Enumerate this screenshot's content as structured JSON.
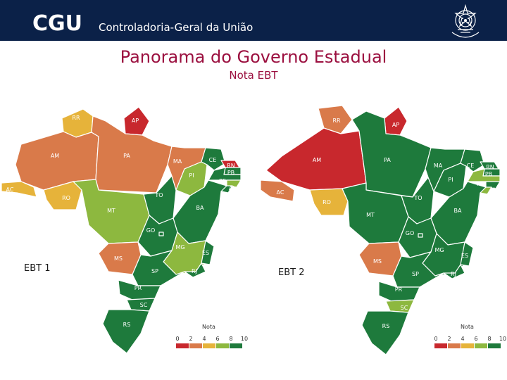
{
  "header": {
    "logo_text": "CGU",
    "org_name": "Controladoria-Geral da União"
  },
  "title": "Panorama do Governo Estadual",
  "subtitle": "Nota EBT",
  "palette": {
    "red": "#c8282d",
    "orange": "#d97a4a",
    "yellow": "#e6b33a",
    "lightgreen": "#8db83f",
    "green": "#1e7a3c",
    "header_bg": "#0b2148",
    "title_color": "#9b0f3f"
  },
  "maps": [
    {
      "label": "EBT 1",
      "legend_title": "Nota",
      "legend_ticks": [
        "0",
        "2",
        "4",
        "6",
        "8",
        "10"
      ],
      "states": {
        "RR": "yellow",
        "AP": "red",
        "AM": "orange",
        "PA": "orange",
        "AC": "yellow",
        "RO": "yellow",
        "MT": "lightgreen",
        "TO": "green",
        "MA": "orange",
        "PI": "lightgreen",
        "CE": "green",
        "RN": "red",
        "PB": "green",
        "PE": "green",
        "AL": "lightgreen",
        "SE": "green",
        "BA": "green",
        "GO": "green",
        "DF": "green",
        "MG": "lightgreen",
        "ES": "green",
        "RJ": "green",
        "MS": "orange",
        "SP": "green",
        "PR": "green",
        "SC": "green",
        "RS": "green"
      },
      "state_labels": [
        "RR",
        "AP",
        "AM",
        "PA",
        "AC",
        "RO",
        "MT",
        "TO",
        "MA",
        "PI",
        "CE",
        "RN",
        "PB",
        "PE",
        "AL",
        "SE",
        "BA",
        "GO",
        "MG",
        "ES",
        "RJ",
        "MS",
        "SP",
        "PR",
        "SC",
        "RS"
      ]
    },
    {
      "label": "EBT 2",
      "legend_title": "Nota",
      "legend_ticks": [
        "0",
        "2",
        "4",
        "6",
        "8",
        "10"
      ],
      "states": {
        "RR": "orange",
        "AP": "red",
        "AM": "red",
        "PA": "green",
        "AC": "orange",
        "RO": "yellow",
        "MT": "green",
        "TO": "green",
        "MA": "green",
        "PI": "green",
        "CE": "green",
        "RN": "green",
        "PB": "green",
        "PE": "lightgreen",
        "AL": "green",
        "SE": "lightgreen",
        "BA": "green",
        "GO": "green",
        "DF": "green",
        "MG": "green",
        "ES": "green",
        "RJ": "green",
        "MS": "orange",
        "SP": "green",
        "PR": "green",
        "SC": "lightgreen",
        "RS": "green"
      },
      "state_labels": [
        "RR",
        "AP",
        "AM",
        "PA",
        "AC",
        "RO",
        "MT",
        "TO",
        "MA",
        "PI",
        "CE",
        "RN",
        "PB",
        "PE",
        "AL",
        "SE",
        "BA",
        "GO",
        "MG",
        "ES",
        "RJ",
        "MS",
        "SP",
        "PR",
        "SC",
        "RS"
      ]
    }
  ]
}
